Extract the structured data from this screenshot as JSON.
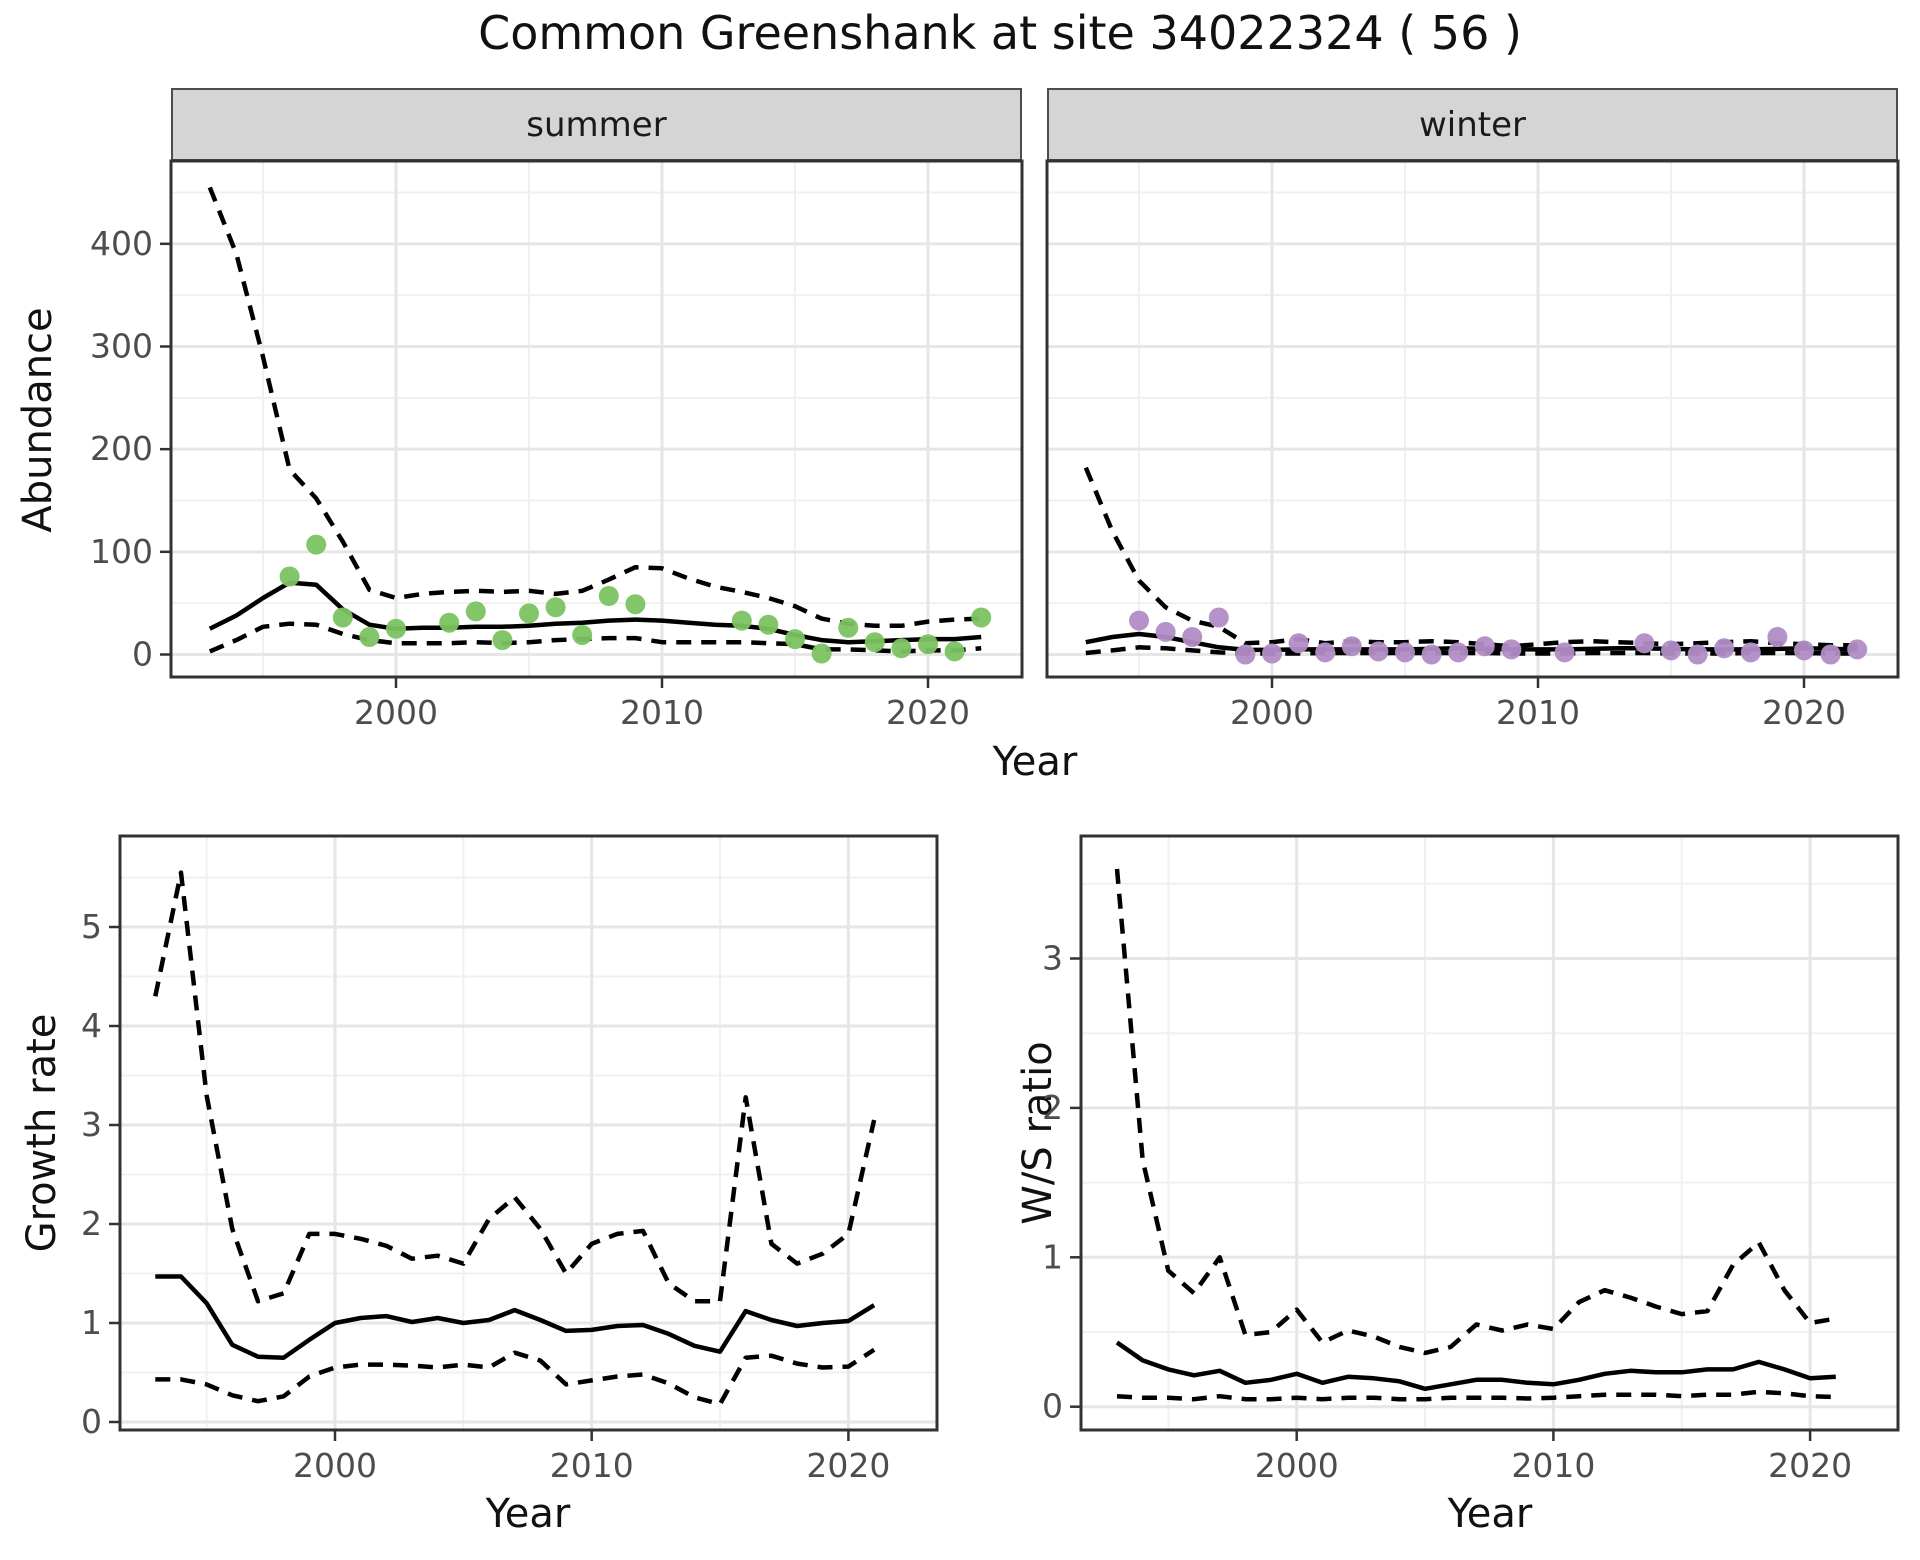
{
  "title": "Common Greenshank at site 34022324 ( 56 )",
  "facets": {
    "summer": "summer",
    "winter": "winter"
  },
  "axis_labels": {
    "abundance": "Abundance",
    "year": "Year",
    "growth_rate": "Growth rate",
    "ws_ratio": "W/S ratio"
  },
  "colors": {
    "summer_points": "#7cc362",
    "winter_points": "#b18dc6",
    "line": "#000000",
    "strip_bg": "#d5d5d5",
    "grid_major": "#e6e6e6",
    "grid_minor": "#f0f0f0",
    "panel_border": "#333333",
    "tick_text": "#4d4d4d"
  },
  "chart_data": [
    {
      "id": "abundance_summer",
      "type": "line+scatter",
      "facet": "summer",
      "xlabel": "Year",
      "ylabel": "Abundance",
      "x_ticks": [
        2000,
        2010,
        2020
      ],
      "x_minor": [
        1995,
        2005,
        2015
      ],
      "y_ticks": [
        0,
        100,
        200,
        300,
        400
      ],
      "y_minor": [
        50,
        150,
        250,
        350,
        450
      ],
      "x_range": [
        1991.6,
        2023.5
      ],
      "y_range": [
        -22,
        478
      ],
      "grid": true,
      "legend": "none",
      "series": [
        {
          "name": "lower_ci",
          "style": "dashed",
          "x": [
            1993,
            1994,
            1995,
            1996,
            1997,
            1998,
            1999,
            2000,
            2001,
            2002,
            2003,
            2004,
            2005,
            2006,
            2007,
            2008,
            2009,
            2010,
            2011,
            2012,
            2013,
            2014,
            2015,
            2016,
            2017,
            2018,
            2019,
            2020,
            2021,
            2022
          ],
          "y": [
            3,
            14,
            27,
            30,
            29,
            20,
            14,
            11,
            11,
            11,
            12,
            11,
            12,
            14,
            15,
            16,
            16,
            12,
            12,
            12,
            12,
            11,
            10,
            5,
            5,
            4,
            3,
            4,
            4,
            6
          ]
        },
        {
          "name": "upper_ci",
          "style": "dashed",
          "x": [
            1993,
            1994,
            1995,
            1996,
            1997,
            1998,
            1999,
            2000,
            2001,
            2002,
            2003,
            2004,
            2005,
            2006,
            2007,
            2008,
            2009,
            2010,
            2011,
            2012,
            2013,
            2014,
            2015,
            2016,
            2017,
            2018,
            2019,
            2020,
            2021,
            2022
          ],
          "y": [
            455,
            390,
            290,
            180,
            152,
            110,
            63,
            55,
            59,
            61,
            62,
            61,
            62,
            59,
            62,
            73,
            85,
            84,
            74,
            66,
            61,
            55,
            47,
            35,
            30,
            28,
            28,
            32,
            34,
            35
          ]
        },
        {
          "name": "fit",
          "style": "solid",
          "x": [
            1993,
            1994,
            1995,
            1996,
            1997,
            1998,
            1999,
            2000,
            2001,
            2002,
            2003,
            2004,
            2005,
            2006,
            2007,
            2008,
            2009,
            2010,
            2011,
            2012,
            2013,
            2014,
            2015,
            2016,
            2017,
            2018,
            2019,
            2020,
            2021,
            2022
          ],
          "y": [
            25,
            38,
            55,
            70,
            68,
            44,
            29,
            25,
            26,
            26,
            27,
            27,
            28,
            30,
            31,
            33,
            34,
            33,
            31,
            29,
            28,
            25,
            19,
            14,
            12,
            13,
            14,
            15,
            15,
            17
          ]
        },
        {
          "name": "observed",
          "mode": "points",
          "color": "#7cc362",
          "x": [
            1996,
            1997,
            1998,
            1999,
            2000,
            2002,
            2003,
            2004,
            2005,
            2006,
            2007,
            2008,
            2009,
            2013,
            2014,
            2015,
            2016,
            2017,
            2018,
            2019,
            2020,
            2021,
            2022
          ],
          "y": [
            76,
            107,
            36,
            17,
            25,
            31,
            42,
            14,
            40,
            46,
            19,
            57,
            49,
            33,
            29,
            15,
            1,
            26,
            12,
            6,
            10,
            3,
            36
          ]
        }
      ]
    },
    {
      "id": "abundance_winter",
      "type": "line+scatter",
      "facet": "winter",
      "xlabel": "Year",
      "ylabel": "Abundance",
      "x_ticks": [
        2000,
        2010,
        2020
      ],
      "x_minor": [
        1995,
        2005,
        2015
      ],
      "y_ticks": [
        0,
        100,
        200,
        300,
        400
      ],
      "y_minor": [
        50,
        150,
        250,
        350,
        450
      ],
      "x_range": [
        1991.6,
        2023.5
      ],
      "y_range": [
        -22,
        478
      ],
      "grid": true,
      "legend": "none",
      "series": [
        {
          "name": "lower_ci",
          "style": "dashed",
          "x": [
            1993,
            1994,
            1995,
            1996,
            1997,
            1998,
            1999,
            2000,
            2001,
            2002,
            2003,
            2004,
            2005,
            2006,
            2007,
            2008,
            2009,
            2010,
            2011,
            2012,
            2013,
            2014,
            2015,
            2016,
            2017,
            2018,
            2019,
            2020,
            2021,
            2022
          ],
          "y": [
            1.5,
            4,
            7,
            6,
            4,
            2,
            1,
            1,
            1,
            1.5,
            1.5,
            1.5,
            1.5,
            1.5,
            1.5,
            1.5,
            1,
            1,
            1,
            1.5,
            1.5,
            1.5,
            1,
            1,
            1,
            1.5,
            1.5,
            1.5,
            1,
            1
          ]
        },
        {
          "name": "upper_ci",
          "style": "dashed",
          "x": [
            1993,
            1994,
            1995,
            1996,
            1997,
            1998,
            1999,
            2000,
            2001,
            2002,
            2003,
            2004,
            2005,
            2006,
            2007,
            2008,
            2009,
            2010,
            2011,
            2012,
            2013,
            2014,
            2015,
            2016,
            2017,
            2018,
            2019,
            2020,
            2021,
            2022
          ],
          "y": [
            182,
            120,
            72,
            46,
            33,
            27,
            11,
            12,
            15,
            11,
            13,
            12,
            12,
            13,
            12,
            10,
            8,
            10,
            12,
            13,
            12,
            11,
            10,
            11,
            12,
            13,
            11,
            10,
            9,
            9
          ]
        },
        {
          "name": "fit",
          "style": "solid",
          "x": [
            1993,
            1994,
            1995,
            1996,
            1997,
            1998,
            1999,
            2000,
            2001,
            2002,
            2003,
            2004,
            2005,
            2006,
            2007,
            2008,
            2009,
            2010,
            2011,
            2012,
            2013,
            2014,
            2015,
            2016,
            2017,
            2018,
            2019,
            2020,
            2021,
            2022
          ],
          "y": [
            12,
            17,
            20,
            17,
            12,
            7,
            4.5,
            4.5,
            5,
            5,
            5,
            5,
            5,
            5.5,
            6,
            5.5,
            5,
            5,
            5,
            5.5,
            6,
            6,
            5.5,
            5,
            5,
            5,
            5.5,
            6,
            5.5,
            5
          ]
        },
        {
          "name": "observed",
          "mode": "points",
          "color": "#b18dc6",
          "x": [
            1995,
            1996,
            1997,
            1998,
            1999,
            2000,
            2001,
            2002,
            2003,
            2004,
            2005,
            2006,
            2007,
            2008,
            2009,
            2011,
            2014,
            2015,
            2016,
            2017,
            2018,
            2019,
            2020,
            2021,
            2022
          ],
          "y": [
            33,
            22,
            17,
            36,
            0,
            1,
            11,
            2,
            8,
            3,
            2,
            0,
            2,
            8,
            5,
            2,
            11,
            4,
            0,
            6,
            2,
            17,
            4,
            0,
            5
          ]
        }
      ]
    },
    {
      "id": "growth_rate",
      "type": "line",
      "xlabel": "Year",
      "ylabel": "Growth rate",
      "x_ticks": [
        2000,
        2010,
        2020
      ],
      "x_minor": [
        1995,
        2005,
        2015
      ],
      "y_ticks": [
        0,
        1,
        2,
        3,
        4,
        5
      ],
      "y_minor": [
        0.5,
        1.5,
        2.5,
        3.5,
        4.5,
        5.5
      ],
      "x_range": [
        1991.6,
        2023.4
      ],
      "y_range": [
        -0.08,
        5.92
      ],
      "grid": true,
      "legend": "none",
      "series": [
        {
          "name": "lower_ci",
          "style": "dashed",
          "x": [
            1993,
            1994,
            1995,
            1996,
            1997,
            1998,
            1999,
            2000,
            2001,
            2002,
            2003,
            2004,
            2005,
            2006,
            2007,
            2008,
            2009,
            2010,
            2011,
            2012,
            2013,
            2014,
            2015,
            2016,
            2017,
            2018,
            2019,
            2020,
            2021
          ],
          "y": [
            0.43,
            0.43,
            0.38,
            0.27,
            0.21,
            0.26,
            0.46,
            0.55,
            0.58,
            0.58,
            0.57,
            0.55,
            0.58,
            0.55,
            0.7,
            0.62,
            0.38,
            0.42,
            0.46,
            0.48,
            0.39,
            0.25,
            0.18,
            0.65,
            0.67,
            0.59,
            0.55,
            0.56,
            0.73
          ]
        },
        {
          "name": "upper_ci",
          "style": "dashed",
          "x": [
            1993,
            1994,
            1995,
            1996,
            1997,
            1998,
            1999,
            2000,
            2001,
            2002,
            2003,
            2004,
            2005,
            2006,
            2007,
            2008,
            2009,
            2010,
            2011,
            2012,
            2013,
            2014,
            2015,
            2016,
            2017,
            2018,
            2019,
            2020,
            2021
          ],
          "y": [
            4.3,
            5.55,
            3.3,
            1.95,
            1.22,
            1.3,
            1.9,
            1.9,
            1.85,
            1.78,
            1.65,
            1.68,
            1.6,
            2.05,
            2.27,
            1.95,
            1.5,
            1.8,
            1.9,
            1.93,
            1.4,
            1.22,
            1.22,
            3.28,
            1.8,
            1.6,
            1.7,
            1.9,
            3.05
          ]
        },
        {
          "name": "fit",
          "style": "solid",
          "x": [
            1993,
            1994,
            1995,
            1996,
            1997,
            1998,
            1999,
            2000,
            2001,
            2002,
            2003,
            2004,
            2005,
            2006,
            2007,
            2008,
            2009,
            2010,
            2011,
            2012,
            2013,
            2014,
            2015,
            2016,
            2017,
            2018,
            2019,
            2020,
            2021
          ],
          "y": [
            1.47,
            1.47,
            1.2,
            0.78,
            0.66,
            0.65,
            0.83,
            1.0,
            1.05,
            1.07,
            1.01,
            1.05,
            1.0,
            1.03,
            1.13,
            1.03,
            0.92,
            0.93,
            0.97,
            0.98,
            0.89,
            0.77,
            0.71,
            1.12,
            1.03,
            0.97,
            1.0,
            1.02,
            1.18
          ]
        }
      ]
    },
    {
      "id": "ws_ratio",
      "type": "line",
      "xlabel": "Year",
      "ylabel": "W/S ratio",
      "x_ticks": [
        2000,
        2010,
        2020
      ],
      "x_minor": [
        1995,
        2005,
        2015
      ],
      "y_ticks": [
        0,
        1,
        2,
        3
      ],
      "y_minor": [
        0.5,
        1.5,
        2.5,
        3.5
      ],
      "x_range": [
        1991.6,
        2023.4
      ],
      "y_range": [
        -0.16,
        3.82
      ],
      "grid": true,
      "legend": "none",
      "series": [
        {
          "name": "lower_ci",
          "style": "dashed",
          "x": [
            1993,
            1994,
            1995,
            1996,
            1997,
            1998,
            1999,
            2000,
            2001,
            2002,
            2003,
            2004,
            2005,
            2006,
            2007,
            2008,
            2009,
            2010,
            2011,
            2012,
            2013,
            2014,
            2015,
            2016,
            2017,
            2018,
            2019,
            2020,
            2021
          ],
          "y": [
            0.07,
            0.06,
            0.06,
            0.05,
            0.07,
            0.05,
            0.05,
            0.06,
            0.05,
            0.06,
            0.06,
            0.05,
            0.05,
            0.06,
            0.06,
            0.06,
            0.055,
            0.06,
            0.07,
            0.08,
            0.08,
            0.08,
            0.07,
            0.08,
            0.08,
            0.1,
            0.09,
            0.07,
            0.065
          ]
        },
        {
          "name": "upper_ci",
          "style": "dashed",
          "x": [
            1993,
            1994,
            1995,
            1996,
            1997,
            1998,
            1999,
            2000,
            2001,
            2002,
            2003,
            2004,
            2005,
            2006,
            2007,
            2008,
            2009,
            2010,
            2011,
            2012,
            2013,
            2014,
            2015,
            2016,
            2017,
            2018,
            2019,
            2020,
            2021
          ],
          "y": [
            3.6,
            1.65,
            0.91,
            0.76,
            1.0,
            0.48,
            0.5,
            0.65,
            0.43,
            0.51,
            0.47,
            0.4,
            0.36,
            0.4,
            0.55,
            0.51,
            0.55,
            0.52,
            0.7,
            0.78,
            0.73,
            0.67,
            0.62,
            0.64,
            0.95,
            1.1,
            0.78,
            0.56,
            0.59
          ]
        },
        {
          "name": "fit",
          "style": "solid",
          "x": [
            1993,
            1994,
            1995,
            1996,
            1997,
            1998,
            1999,
            2000,
            2001,
            2002,
            2003,
            2004,
            2005,
            2006,
            2007,
            2008,
            2009,
            2010,
            2011,
            2012,
            2013,
            2014,
            2015,
            2016,
            2017,
            2018,
            2019,
            2020,
            2021
          ],
          "y": [
            0.43,
            0.31,
            0.25,
            0.21,
            0.24,
            0.16,
            0.18,
            0.22,
            0.16,
            0.2,
            0.19,
            0.17,
            0.12,
            0.15,
            0.18,
            0.18,
            0.16,
            0.15,
            0.18,
            0.22,
            0.24,
            0.23,
            0.23,
            0.25,
            0.25,
            0.3,
            0.25,
            0.19,
            0.2
          ]
        }
      ]
    }
  ]
}
